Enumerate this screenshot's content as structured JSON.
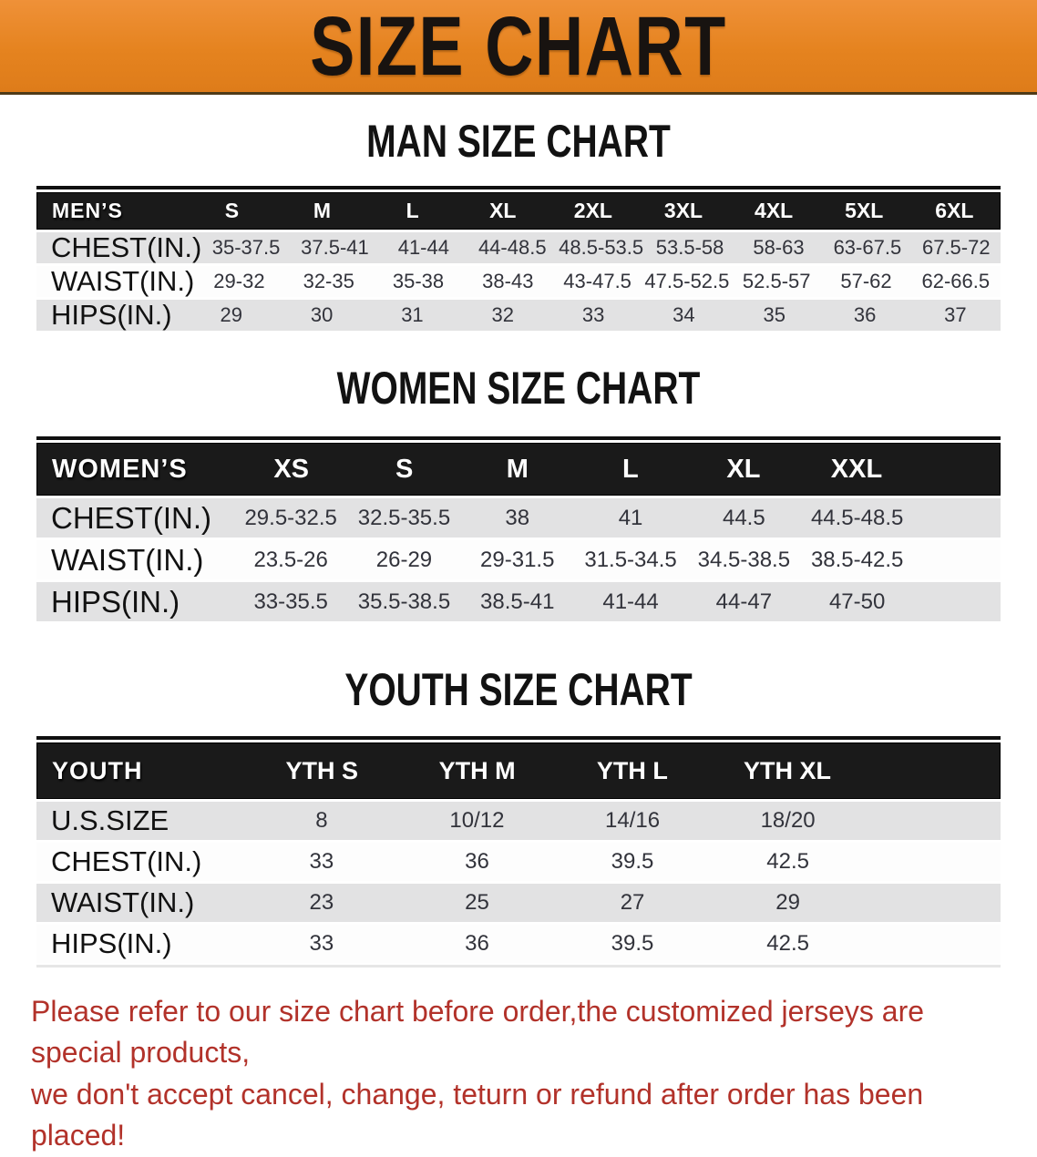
{
  "banner": {
    "title": "SIZE CHART",
    "bg_color": "#e5831f",
    "text_color": "#181310"
  },
  "colors": {
    "header_bar": "#1a1a1a",
    "row_gray": "#e2e2e3",
    "row_white": "#fdfdfd",
    "footer_red": "#b2322a"
  },
  "sections": [
    {
      "heading": "MAN SIZE CHART",
      "table": {
        "label": "MEN’S",
        "columns": [
          "S",
          "M",
          "L",
          "XL",
          "2XL",
          "3XL",
          "4XL",
          "5XL",
          "6XL"
        ],
        "rows": [
          {
            "label": "CHEST(IN.)",
            "values": [
              "35-37.5",
              "37.5-41",
              "41-44",
              "44-48.5",
              "48.5-53.5",
              "53.5-58",
              "58-63",
              "63-67.5",
              "67.5-72"
            ]
          },
          {
            "label": "WAIST(IN.)",
            "values": [
              "29-32",
              "32-35",
              "35-38",
              "38-43",
              "43-47.5",
              "47.5-52.5",
              "52.5-57",
              "57-62",
              "62-66.5"
            ]
          },
          {
            "label": "HIPS(IN.)",
            "values": [
              "29",
              "30",
              "31",
              "32",
              "33",
              "34",
              "35",
              "36",
              "37"
            ]
          }
        ]
      }
    },
    {
      "heading": "WOMEN SIZE CHART",
      "table": {
        "label": "WOMEN’S",
        "columns": [
          "XS",
          "S",
          "M",
          "L",
          "XL",
          "XXL"
        ],
        "rows": [
          {
            "label": "CHEST(IN.)",
            "values": [
              "29.5-32.5",
              "32.5-35.5",
              "38",
              "41",
              "44.5",
              "44.5-48.5"
            ]
          },
          {
            "label": "WAIST(IN.)",
            "values": [
              "23.5-26",
              "26-29",
              "29-31.5",
              "31.5-34.5",
              "34.5-38.5",
              "38.5-42.5"
            ]
          },
          {
            "label": "HIPS(IN.)",
            "values": [
              "33-35.5",
              "35.5-38.5",
              "38.5-41",
              "41-44",
              "44-47",
              "47-50"
            ]
          }
        ]
      }
    },
    {
      "heading": "YOUTH SIZE CHART",
      "table": {
        "label": "YOUTH",
        "columns": [
          "YTH S",
          "YTH M",
          "YTH L",
          "YTH XL"
        ],
        "rows": [
          {
            "label": "U.S.SIZE",
            "values": [
              "8",
              "10/12",
              "14/16",
              "18/20"
            ]
          },
          {
            "label": "CHEST(IN.)",
            "values": [
              "33",
              "36",
              "39.5",
              "42.5"
            ]
          },
          {
            "label": "WAIST(IN.)",
            "values": [
              "23",
              "25",
              "27",
              "29"
            ]
          },
          {
            "label": "HIPS(IN.)",
            "values": [
              "33",
              "36",
              "39.5",
              "42.5"
            ]
          }
        ]
      }
    }
  ],
  "footer": {
    "line1": "Please refer to our size chart before order,the customized jerseys are special products,",
    "line2": "we don't accept cancel, change, teturn or refund after order has been placed!"
  }
}
